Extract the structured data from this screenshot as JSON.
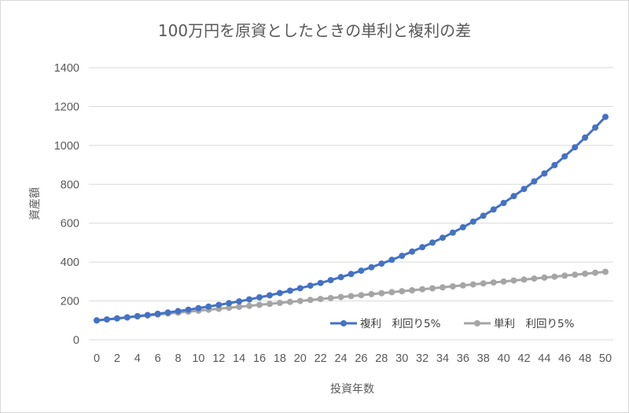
{
  "chart_data": {
    "type": "line",
    "title": "100万円を原資としたときの単利と複利の差",
    "xlabel": "投資年数",
    "ylabel": "資産額",
    "x": [
      0,
      1,
      2,
      3,
      4,
      5,
      6,
      7,
      8,
      9,
      10,
      11,
      12,
      13,
      14,
      15,
      16,
      17,
      18,
      19,
      20,
      21,
      22,
      23,
      24,
      25,
      26,
      27,
      28,
      29,
      30,
      31,
      32,
      33,
      34,
      35,
      36,
      37,
      38,
      39,
      40,
      41,
      42,
      43,
      44,
      45,
      46,
      47,
      48,
      49,
      50
    ],
    "x_tick_labels": [
      "0",
      "2",
      "4",
      "6",
      "8",
      "10",
      "12",
      "14",
      "16",
      "18",
      "20",
      "22",
      "24",
      "26",
      "28",
      "30",
      "32",
      "34",
      "36",
      "38",
      "40",
      "42",
      "44",
      "46",
      "48",
      "50"
    ],
    "y_tick_labels": [
      "0",
      "200",
      "400",
      "600",
      "800",
      "1000",
      "1200",
      "1400"
    ],
    "xlim": [
      0,
      50
    ],
    "ylim": [
      0,
      1400
    ],
    "y_tick_step": 200,
    "grid": "horizontal",
    "legend_position": "bottom-right",
    "series": [
      {
        "name": "複利　利回り5%",
        "color": "#4472c4",
        "values": [
          100,
          105,
          110.3,
          115.8,
          121.6,
          127.6,
          134,
          140.7,
          147.7,
          155.1,
          162.9,
          171,
          179.6,
          188.6,
          198,
          207.9,
          218.3,
          229.2,
          240.7,
          252.7,
          265.3,
          278.6,
          292.5,
          307.2,
          322.5,
          338.6,
          355.7,
          373.5,
          392,
          411.6,
          432.2,
          453.8,
          476.5,
          500.3,
          525.4,
          551.6,
          579.2,
          608.2,
          638.6,
          670.5,
          704,
          739.2,
          776.2,
          815,
          855.7,
          898.5,
          943.4,
          990.6,
          1040.1,
          1092.1,
          1146.7
        ]
      },
      {
        "name": "単利　利回り5%",
        "color": "#a5a5a5",
        "values": [
          100,
          105,
          110,
          115,
          120,
          125,
          130,
          135,
          140,
          145,
          150,
          155,
          160,
          165,
          170,
          175,
          180,
          185,
          190,
          195,
          200,
          205,
          210,
          215,
          220,
          225,
          230,
          235,
          240,
          245,
          250,
          255,
          260,
          265,
          270,
          275,
          280,
          285,
          290,
          295,
          300,
          305,
          310,
          315,
          320,
          325,
          330,
          335,
          340,
          345,
          350
        ]
      }
    ]
  }
}
